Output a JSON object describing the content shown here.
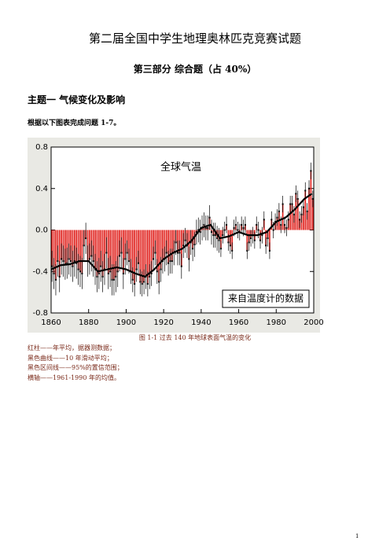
{
  "header": {
    "title": "第二届全国中学生地理奥林匹克竞赛试题"
  },
  "section": "第三部分  综合题（占 40%）",
  "topic": "主题一   气候变化及影响",
  "instruction": "根据以下图表完成问题 1-7。",
  "chart_data": {
    "type": "bar",
    "annotations": [
      "全球气温",
      "来自温度计的数据"
    ],
    "x": [
      1860,
      1861,
      1862,
      1863,
      1864,
      1865,
      1866,
      1867,
      1868,
      1869,
      1870,
      1871,
      1872,
      1873,
      1874,
      1875,
      1876,
      1877,
      1878,
      1879,
      1880,
      1881,
      1882,
      1883,
      1884,
      1885,
      1886,
      1887,
      1888,
      1889,
      1890,
      1891,
      1892,
      1893,
      1894,
      1895,
      1896,
      1897,
      1898,
      1899,
      1900,
      1901,
      1902,
      1903,
      1904,
      1905,
      1906,
      1907,
      1908,
      1909,
      1910,
      1911,
      1912,
      1913,
      1914,
      1915,
      1916,
      1917,
      1918,
      1919,
      1920,
      1921,
      1922,
      1923,
      1924,
      1925,
      1926,
      1927,
      1928,
      1929,
      1930,
      1931,
      1932,
      1933,
      1934,
      1935,
      1936,
      1937,
      1938,
      1939,
      1940,
      1941,
      1942,
      1943,
      1944,
      1945,
      1946,
      1947,
      1948,
      1949,
      1950,
      1951,
      1952,
      1953,
      1954,
      1955,
      1956,
      1957,
      1958,
      1959,
      1960,
      1961,
      1962,
      1963,
      1964,
      1965,
      1966,
      1967,
      1968,
      1969,
      1970,
      1971,
      1972,
      1973,
      1974,
      1975,
      1976,
      1977,
      1978,
      1979,
      1980,
      1981,
      1982,
      1983,
      1984,
      1985,
      1986,
      1987,
      1988,
      1989,
      1990,
      1991,
      1992,
      1993,
      1994,
      1995,
      1996,
      1997,
      1998,
      1999
    ],
    "values": [
      -0.35,
      -0.42,
      -0.48,
      -0.3,
      -0.45,
      -0.28,
      -0.3,
      -0.33,
      -0.32,
      -0.28,
      -0.3,
      -0.35,
      -0.3,
      -0.32,
      -0.38,
      -0.4,
      -0.42,
      -0.15,
      -0.08,
      -0.3,
      -0.28,
      -0.25,
      -0.3,
      -0.38,
      -0.45,
      -0.42,
      -0.35,
      -0.45,
      -0.38,
      -0.22,
      -0.42,
      -0.4,
      -0.48,
      -0.48,
      -0.45,
      -0.4,
      -0.25,
      -0.22,
      -0.42,
      -0.28,
      -0.22,
      -0.3,
      -0.4,
      -0.48,
      -0.52,
      -0.38,
      -0.32,
      -0.5,
      -0.52,
      -0.5,
      -0.45,
      -0.52,
      -0.45,
      -0.42,
      -0.28,
      -0.22,
      -0.4,
      -0.5,
      -0.38,
      -0.3,
      -0.28,
      -0.22,
      -0.32,
      -0.3,
      -0.3,
      -0.22,
      -0.12,
      -0.22,
      -0.22,
      -0.35,
      -0.15,
      -0.1,
      -0.15,
      -0.28,
      -0.12,
      -0.18,
      -0.14,
      -0.02,
      0.0,
      -0.02,
      0.02,
      0.05,
      0.02,
      0.02,
      0.12,
      -0.02,
      -0.05,
      -0.05,
      -0.08,
      -0.1,
      -0.18,
      -0.05,
      0.0,
      0.05,
      -0.12,
      -0.15,
      -0.2,
      0.02,
      0.05,
      0.0,
      -0.02,
      0.05,
      0.02,
      0.05,
      -0.2,
      -0.12,
      -0.08,
      -0.05,
      -0.1,
      0.05,
      0.0,
      -0.1,
      -0.05,
      0.1,
      -0.15,
      -0.08,
      -0.2,
      0.1,
      0.0,
      0.08,
      0.12,
      0.18,
      0.05,
      0.25,
      0.05,
      0.02,
      0.1,
      0.25,
      0.25,
      0.15,
      0.35,
      0.3,
      0.1,
      0.15,
      0.22,
      0.38,
      0.18,
      0.4,
      0.57,
      0.3
    ],
    "errors": [
      0.15,
      0.15,
      0.15,
      0.15,
      0.15,
      0.15,
      0.15,
      0.15,
      0.15,
      0.15,
      0.15,
      0.15,
      0.15,
      0.15,
      0.15,
      0.15,
      0.15,
      0.15,
      0.15,
      0.15,
      0.15,
      0.15,
      0.15,
      0.15,
      0.15,
      0.15,
      0.15,
      0.15,
      0.15,
      0.15,
      0.15,
      0.15,
      0.15,
      0.15,
      0.15,
      0.15,
      0.15,
      0.15,
      0.15,
      0.15,
      0.12,
      0.12,
      0.12,
      0.12,
      0.12,
      0.12,
      0.12,
      0.12,
      0.12,
      0.12,
      0.12,
      0.12,
      0.12,
      0.12,
      0.12,
      0.12,
      0.12,
      0.12,
      0.12,
      0.12,
      0.12,
      0.12,
      0.12,
      0.12,
      0.12,
      0.12,
      0.12,
      0.12,
      0.12,
      0.12,
      0.12,
      0.12,
      0.12,
      0.12,
      0.12,
      0.12,
      0.12,
      0.12,
      0.12,
      0.12,
      0.12,
      0.12,
      0.12,
      0.12,
      0.12,
      0.12,
      0.12,
      0.12,
      0.12,
      0.12,
      0.08,
      0.08,
      0.08,
      0.08,
      0.08,
      0.08,
      0.08,
      0.08,
      0.08,
      0.08,
      0.08,
      0.08,
      0.08,
      0.08,
      0.08,
      0.08,
      0.08,
      0.08,
      0.08,
      0.08,
      0.08,
      0.08,
      0.08,
      0.08,
      0.08,
      0.08,
      0.08,
      0.08,
      0.08,
      0.08,
      0.08,
      0.08,
      0.08,
      0.08,
      0.08,
      0.08,
      0.08,
      0.08,
      0.08,
      0.08,
      0.08,
      0.08,
      0.08,
      0.08,
      0.08,
      0.08,
      0.08,
      0.08,
      0.08,
      0.08
    ],
    "color": "#e0201c",
    "smooth": {
      "color": "#000000",
      "x": [
        1860,
        1865,
        1870,
        1875,
        1880,
        1885,
        1890,
        1895,
        1900,
        1905,
        1910,
        1915,
        1920,
        1925,
        1930,
        1935,
        1940,
        1945,
        1950,
        1955,
        1960,
        1965,
        1970,
        1975,
        1980,
        1985,
        1990,
        1995,
        1999
      ],
      "values": [
        -0.38,
        -0.34,
        -0.33,
        -0.3,
        -0.3,
        -0.4,
        -0.38,
        -0.36,
        -0.38,
        -0.42,
        -0.45,
        -0.38,
        -0.28,
        -0.22,
        -0.18,
        -0.1,
        0.02,
        0.05,
        -0.08,
        -0.06,
        -0.02,
        -0.05,
        -0.05,
        -0.02,
        0.08,
        0.12,
        0.2,
        0.3,
        0.35
      ]
    },
    "xlim": [
      1860,
      2000
    ],
    "xticks": [
      1860,
      1880,
      1900,
      1920,
      1940,
      1960,
      1980,
      2000
    ],
    "ylim": [
      -0.8,
      0.8
    ],
    "yticks": [
      0.8,
      0.4,
      {
        "value": 0,
        "label": "0.0"
      },
      -0.4,
      -0.8
    ]
  },
  "caption": "图 1-1  过去 140 年地球表面气温的变化",
  "notes": [
    "红柱——年平均，据器测数据；",
    "黑色曲线——10 年滑动平均；",
    "黑色区间线——95%的置信范围；",
    "横轴——1961-1990 年的均值。"
  ],
  "page_number": "1"
}
